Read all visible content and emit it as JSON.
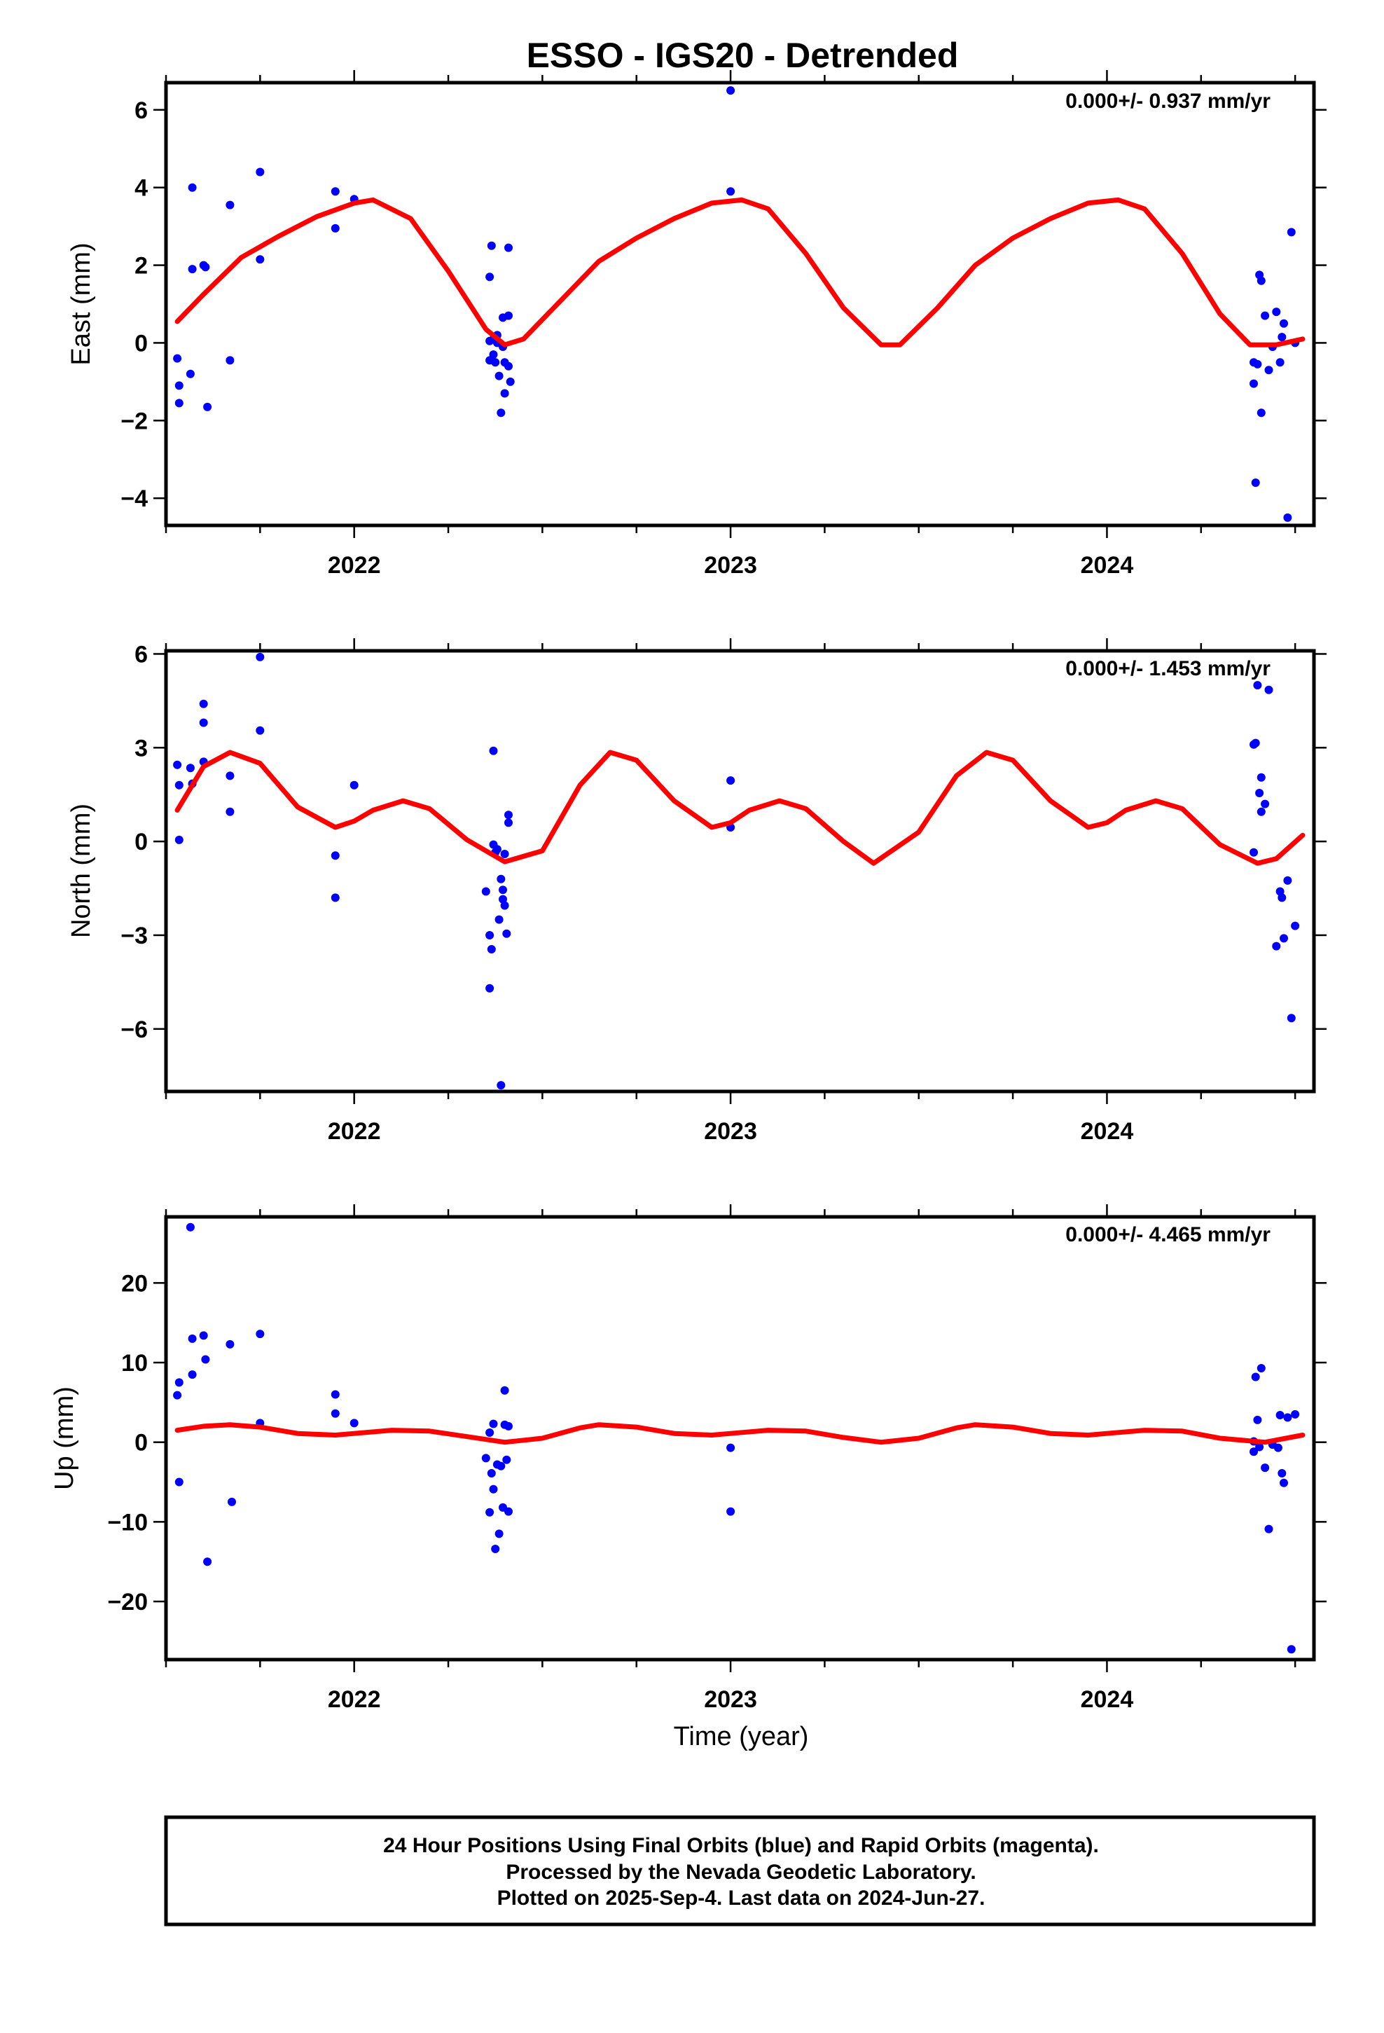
{
  "title": "ESSO - IGS20 - Detrended",
  "xlabel": "Time (year)",
  "footer": {
    "line1": "24 Hour Positions Using Final Orbits (blue) and Rapid Orbits (magenta).",
    "line2": "Processed by the Nevada Geodetic Laboratory.",
    "line3": "Plotted on 2025-Sep-4. Last data on 2024-Jun-27."
  },
  "colors": {
    "points": "#0000ff",
    "fit": "#ff0000",
    "axes": "#000000"
  },
  "chart_data": [
    {
      "type": "scatter",
      "ylabel": "East (mm)",
      "rate_label": "0.000+/- 0.937 mm/yr",
      "xlim": [
        2021.5,
        2024.55
      ],
      "ylim": [
        -4.7,
        6.7
      ],
      "x_ticks": [
        2022,
        2023,
        2024
      ],
      "y_ticks": [
        -4,
        -2,
        0,
        2,
        4,
        6
      ],
      "y_tick_labels": [
        "−4",
        "−2",
        "0",
        "2",
        "4",
        "6"
      ],
      "grid": false,
      "series": [
        {
          "kind": "points",
          "x": [
            2021.53,
            2021.535,
            2021.535,
            2021.57,
            2021.57,
            2021.565,
            2021.6,
            2021.605,
            2021.61,
            2021.67,
            2021.67,
            2021.75,
            2021.75,
            2021.95,
            2021.95,
            2022.0,
            2022.36,
            2022.36,
            2022.36,
            2022.365,
            2022.37,
            2022.37,
            2022.375,
            2022.38,
            2022.38,
            2022.385,
            2022.39,
            2022.395,
            2022.395,
            2022.4,
            2022.4,
            2022.41,
            2022.41,
            2022.41,
            2022.415,
            2023.0,
            2023.0,
            2024.39,
            2024.39,
            2024.395,
            2024.4,
            2024.405,
            2024.41,
            2024.41,
            2024.42,
            2024.43,
            2024.44,
            2024.45,
            2024.46,
            2024.465,
            2024.47,
            2024.48,
            2024.49,
            2024.5
          ],
          "y": [
            -0.4,
            -1.55,
            -1.1,
            4.0,
            1.9,
            -0.8,
            2.0,
            1.95,
            -1.65,
            3.55,
            -0.45,
            4.4,
            2.15,
            3.9,
            2.95,
            3.7,
            -0.45,
            0.05,
            1.7,
            2.5,
            0.1,
            -0.3,
            -0.5,
            0.0,
            0.2,
            -0.85,
            -1.8,
            0.65,
            -0.1,
            -0.5,
            -1.3,
            2.45,
            0.7,
            -0.6,
            -1.0,
            6.5,
            3.9,
            -0.5,
            -1.05,
            -3.6,
            -0.55,
            1.75,
            1.6,
            -1.8,
            0.7,
            -0.7,
            -0.1,
            0.8,
            -0.5,
            0.15,
            0.5,
            -4.5,
            2.85,
            0.0
          ]
        },
        {
          "kind": "fit",
          "x": [
            2021.53,
            2021.6,
            2021.7,
            2021.8,
            2021.9,
            2022.0,
            2022.05,
            2022.15,
            2022.25,
            2022.35,
            2022.4,
            2022.45,
            2022.55,
            2022.65,
            2022.75,
            2022.85,
            2022.95,
            2023.03,
            2023.1,
            2023.2,
            2023.3,
            2023.4,
            2023.45,
            2023.55,
            2023.65,
            2023.75,
            2023.85,
            2023.95,
            2024.03,
            2024.1,
            2024.2,
            2024.3,
            2024.38,
            2024.45,
            2024.52
          ],
          "y": [
            0.55,
            1.25,
            2.2,
            2.75,
            3.25,
            3.6,
            3.68,
            3.2,
            1.85,
            0.35,
            -0.05,
            0.1,
            1.1,
            2.1,
            2.7,
            3.2,
            3.6,
            3.68,
            3.45,
            2.3,
            0.9,
            -0.05,
            -0.05,
            0.9,
            2.0,
            2.7,
            3.2,
            3.6,
            3.68,
            3.45,
            2.3,
            0.75,
            -0.05,
            -0.05,
            0.1
          ]
        }
      ]
    },
    {
      "type": "scatter",
      "ylabel": "North (mm)",
      "rate_label": "0.000+/- 1.453 mm/yr",
      "xlim": [
        2021.5,
        2024.55
      ],
      "ylim": [
        -8.0,
        6.1
      ],
      "x_ticks": [
        2022,
        2023,
        2024
      ],
      "y_ticks": [
        -6,
        -3,
        0,
        3,
        6
      ],
      "y_tick_labels": [
        "−6",
        "−3",
        "0",
        "3",
        "6"
      ],
      "grid": false,
      "series": [
        {
          "kind": "points",
          "x": [
            2021.53,
            2021.535,
            2021.535,
            2021.565,
            2021.57,
            2021.6,
            2021.6,
            2021.6,
            2021.67,
            2021.67,
            2021.75,
            2021.75,
            2021.95,
            2021.95,
            2022.0,
            2022.35,
            2022.36,
            2022.36,
            2022.365,
            2022.37,
            2022.37,
            2022.375,
            2022.38,
            2022.385,
            2022.39,
            2022.39,
            2022.395,
            2022.395,
            2022.4,
            2022.4,
            2022.405,
            2022.41,
            2022.41,
            2023.0,
            2023.0,
            2024.39,
            2024.39,
            2024.395,
            2024.4,
            2024.405,
            2024.41,
            2024.41,
            2024.42,
            2024.43,
            2024.45,
            2024.46,
            2024.465,
            2024.47,
            2024.48,
            2024.49,
            2024.5
          ],
          "y": [
            2.45,
            1.8,
            0.05,
            2.35,
            1.85,
            3.8,
            4.4,
            2.55,
            2.1,
            0.95,
            5.9,
            3.55,
            -0.45,
            -1.8,
            1.8,
            -1.6,
            -3.0,
            -4.7,
            -3.45,
            2.9,
            -0.1,
            -0.35,
            -0.25,
            -2.5,
            -7.8,
            -1.2,
            -1.55,
            -1.85,
            -2.05,
            -0.4,
            -2.95,
            0.85,
            0.6,
            1.95,
            0.45,
            3.1,
            -0.35,
            3.15,
            5.0,
            1.55,
            2.05,
            0.95,
            1.2,
            4.85,
            -3.35,
            -1.6,
            -1.8,
            -3.1,
            -1.25,
            -5.65,
            -2.7
          ]
        },
        {
          "kind": "fit",
          "x": [
            2021.53,
            2021.6,
            2021.67,
            2021.75,
            2021.85,
            2021.95,
            2022.0,
            2022.05,
            2022.13,
            2022.2,
            2022.3,
            2022.4,
            2022.5,
            2022.6,
            2022.68,
            2022.75,
            2022.85,
            2022.95,
            2023.0,
            2023.05,
            2023.13,
            2023.2,
            2023.3,
            2023.38,
            2023.5,
            2023.6,
            2023.68,
            2023.75,
            2023.85,
            2023.95,
            2024.0,
            2024.05,
            2024.13,
            2024.2,
            2024.3,
            2024.4,
            2024.45,
            2024.52
          ],
          "y": [
            1.0,
            2.4,
            2.85,
            2.5,
            1.1,
            0.45,
            0.65,
            1.0,
            1.3,
            1.05,
            0.05,
            -0.65,
            -0.3,
            1.8,
            2.85,
            2.6,
            1.3,
            0.45,
            0.6,
            1.0,
            1.3,
            1.05,
            0.0,
            -0.7,
            0.3,
            2.1,
            2.85,
            2.6,
            1.3,
            0.45,
            0.6,
            1.0,
            1.3,
            1.05,
            -0.1,
            -0.7,
            -0.55,
            0.2
          ]
        }
      ]
    },
    {
      "type": "scatter",
      "ylabel": "Up (mm)",
      "rate_label": "0.000+/- 4.465 mm/yr",
      "xlim": [
        2021.5,
        2024.55
      ],
      "ylim": [
        -27.3,
        28.3
      ],
      "x_ticks": [
        2022,
        2023,
        2024
      ],
      "y_ticks": [
        -20,
        -10,
        0,
        10,
        20
      ],
      "y_tick_labels": [
        "−20",
        "−10",
        "0",
        "10",
        "20"
      ],
      "grid": false,
      "series": [
        {
          "kind": "points",
          "x": [
            2021.53,
            2021.535,
            2021.535,
            2021.565,
            2021.57,
            2021.57,
            2021.6,
            2021.605,
            2021.61,
            2021.67,
            2021.675,
            2021.75,
            2021.75,
            2021.95,
            2021.95,
            2022.0,
            2022.35,
            2022.36,
            2022.36,
            2022.365,
            2022.37,
            2022.37,
            2022.375,
            2022.38,
            2022.385,
            2022.39,
            2022.395,
            2022.4,
            2022.4,
            2022.405,
            2022.41,
            2022.41,
            2023.0,
            2023.0,
            2024.39,
            2024.39,
            2024.395,
            2024.4,
            2024.405,
            2024.41,
            2024.42,
            2024.43,
            2024.44,
            2024.455,
            2024.46,
            2024.465,
            2024.47,
            2024.48,
            2024.49,
            2024.5
          ],
          "y": [
            5.9,
            -5.0,
            7.5,
            27.0,
            13.0,
            8.5,
            13.4,
            10.4,
            -15.0,
            12.3,
            -7.5,
            13.6,
            2.4,
            6.0,
            3.6,
            2.4,
            -2.0,
            1.2,
            -8.8,
            -3.9,
            2.3,
            -5.9,
            -13.4,
            -2.8,
            -11.5,
            -3.0,
            -8.2,
            6.5,
            2.2,
            -2.2,
            -8.7,
            2.0,
            -0.7,
            -8.7,
            -1.2,
            0.1,
            8.2,
            2.8,
            -0.6,
            9.3,
            -3.2,
            -10.9,
            -0.3,
            -0.7,
            3.4,
            -3.9,
            -5.1,
            3.1,
            -26.0,
            3.5
          ]
        },
        {
          "kind": "fit",
          "x": [
            2021.53,
            2021.6,
            2021.67,
            2021.75,
            2021.85,
            2021.95,
            2022.0,
            2022.1,
            2022.2,
            2022.3,
            2022.4,
            2022.5,
            2022.6,
            2022.65,
            2022.75,
            2022.85,
            2022.95,
            2023.0,
            2023.1,
            2023.2,
            2023.3,
            2023.4,
            2023.5,
            2023.6,
            2023.65,
            2023.75,
            2023.85,
            2023.95,
            2024.0,
            2024.1,
            2024.2,
            2024.3,
            2024.42,
            2024.52
          ],
          "y": [
            1.5,
            2.0,
            2.2,
            1.9,
            1.1,
            0.9,
            1.1,
            1.5,
            1.4,
            0.7,
            0.0,
            0.5,
            1.8,
            2.2,
            1.9,
            1.1,
            0.9,
            1.1,
            1.5,
            1.4,
            0.6,
            0.0,
            0.5,
            1.8,
            2.2,
            1.9,
            1.1,
            0.9,
            1.1,
            1.5,
            1.4,
            0.5,
            0.0,
            0.9
          ]
        }
      ]
    }
  ]
}
